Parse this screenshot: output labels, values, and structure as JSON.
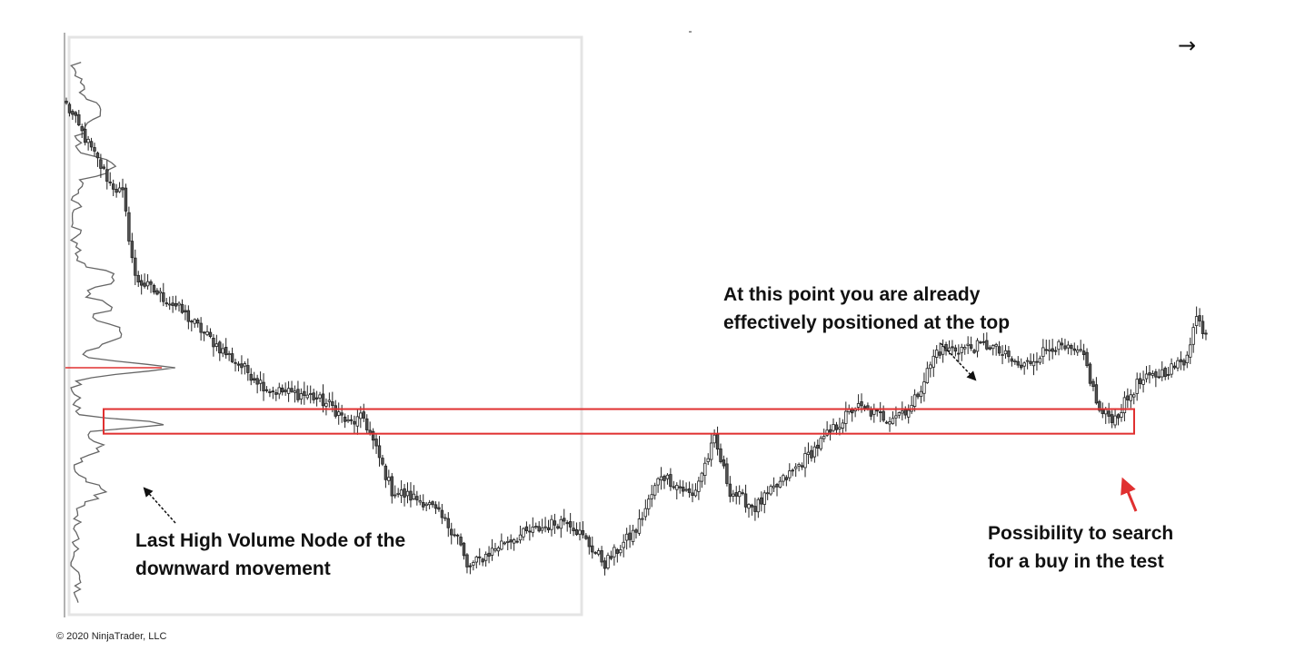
{
  "chart_data": {
    "type": "candlestick",
    "title": "",
    "xlabel": "",
    "ylabel": "",
    "grid": false,
    "ylim": [
      0,
      100
    ],
    "price_path_keypoints": [
      {
        "bar": 0,
        "close": 91
      },
      {
        "bar": 14,
        "close": 77
      },
      {
        "bar": 18,
        "close": 75
      },
      {
        "bar": 22,
        "close": 60
      },
      {
        "bar": 35,
        "close": 55
      },
      {
        "bar": 50,
        "close": 47
      },
      {
        "bar": 65,
        "close": 40
      },
      {
        "bar": 78,
        "close": 39
      },
      {
        "bar": 85,
        "close": 37
      },
      {
        "bar": 90,
        "close": 34
      },
      {
        "bar": 95,
        "close": 35
      },
      {
        "bar": 104,
        "close": 22
      },
      {
        "bar": 115,
        "close": 20
      },
      {
        "bar": 125,
        "close": 14
      },
      {
        "bar": 128,
        "close": 8
      },
      {
        "bar": 140,
        "close": 13
      },
      {
        "bar": 160,
        "close": 17
      },
      {
        "bar": 172,
        "close": 9
      },
      {
        "bar": 182,
        "close": 15
      },
      {
        "bar": 190,
        "close": 25
      },
      {
        "bar": 200,
        "close": 21
      },
      {
        "bar": 207,
        "close": 31
      },
      {
        "bar": 212,
        "close": 22
      },
      {
        "bar": 220,
        "close": 19
      },
      {
        "bar": 233,
        "close": 26
      },
      {
        "bar": 245,
        "close": 33
      },
      {
        "bar": 252,
        "close": 37
      },
      {
        "bar": 262,
        "close": 35
      },
      {
        "bar": 270,
        "close": 37
      },
      {
        "bar": 278,
        "close": 47
      },
      {
        "bar": 295,
        "close": 48
      },
      {
        "bar": 305,
        "close": 44
      },
      {
        "bar": 315,
        "close": 48
      },
      {
        "bar": 325,
        "close": 46
      },
      {
        "bar": 330,
        "close": 36
      },
      {
        "bar": 335,
        "close": 35
      },
      {
        "bar": 342,
        "close": 41
      },
      {
        "bar": 357,
        "close": 45
      },
      {
        "bar": 361,
        "close": 53
      },
      {
        "bar": 364,
        "close": 50
      }
    ],
    "volume_profile": {
      "poc_level": 44,
      "last_high_volume_node_level": 34,
      "test_zone": [
        32.2,
        36.6
      ]
    },
    "annotations": [
      {
        "id": "top",
        "lines": [
          "At this point you are already",
          "effectively positioned at the top"
        ]
      },
      {
        "id": "left",
        "lines": [
          "Last High Volume Node of the",
          "downward movement"
        ]
      },
      {
        "id": "right",
        "lines": [
          "Possibility to search",
          "for a buy in the test"
        ]
      }
    ]
  },
  "annotations": {
    "top": {
      "line1": "At this point you are already",
      "line2": "effectively positioned at the top"
    },
    "left": {
      "line1": "Last High Volume Node of the",
      "line2": "downward movement"
    },
    "right": {
      "line1": "Possibility to search",
      "line2": "for a buy in the test"
    }
  },
  "arrow_symbol": "→",
  "copyright": "© 2020 NinjaTrader, LLC",
  "colors": {
    "candle": "#222222",
    "candle_bull_fill": "#ffffff",
    "candle_bear_fill": "#555555",
    "profile": "#666666",
    "poc_line": "#e03030",
    "zone": "#e03030",
    "pointer_arrow": "#e03030",
    "box_outline": "#e4e4e4"
  }
}
